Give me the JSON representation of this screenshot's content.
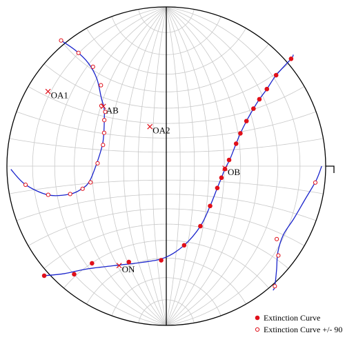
{
  "chart_data": {
    "type": "scatter",
    "projection": "stereographic-net",
    "grid": true,
    "legend_position": "bottom-right",
    "colors": {
      "net_lines": "#c8c8c8",
      "outline": "#000000",
      "axis": "#000000",
      "curve": "#1a24cc",
      "points": "#e0101a",
      "label_marks": "#e0101a"
    },
    "labels": [
      {
        "id": "oa1",
        "text": "OA1",
        "x": -0.742,
        "y": 0.469
      },
      {
        "id": "ab",
        "text": "AB",
        "x": -0.395,
        "y": 0.375
      },
      {
        "id": "oa2",
        "text": "OA2",
        "x": -0.103,
        "y": 0.248
      },
      {
        "id": "ob",
        "text": "OB",
        "x": 0.368,
        "y": -0.013
      },
      {
        "id": "on",
        "text": "ON",
        "x": -0.296,
        "y": -0.624
      }
    ],
    "legend": [
      {
        "id": "ext",
        "label": "Extinction Curve",
        "marker": "filled"
      },
      {
        "id": "ext90",
        "label": "Extinction Curve +/- 90",
        "marker": "open"
      }
    ],
    "series": [
      {
        "name": "Extinction Curve",
        "marker": "filled",
        "points": [
          [
            0.783,
            0.674
          ],
          [
            0.689,
            0.571
          ],
          [
            0.631,
            0.484
          ],
          [
            0.584,
            0.42
          ],
          [
            0.547,
            0.361
          ],
          [
            0.503,
            0.283
          ],
          [
            0.465,
            0.206
          ],
          [
            0.438,
            0.141
          ],
          [
            0.394,
            0.039
          ],
          [
            0.368,
            -0.018
          ],
          [
            0.346,
            -0.073
          ],
          [
            0.32,
            -0.137
          ],
          [
            0.275,
            -0.25
          ],
          [
            0.214,
            -0.377
          ],
          [
            0.112,
            -0.497
          ],
          [
            -0.032,
            -0.591
          ],
          [
            -0.235,
            -0.602
          ],
          [
            -0.466,
            -0.61
          ],
          [
            -0.578,
            -0.679
          ],
          [
            -0.766,
            -0.688
          ]
        ]
      },
      {
        "name": "Extinction Curve +/- 90",
        "marker": "open",
        "points": [
          [
            -0.66,
            0.789
          ],
          [
            -0.551,
            0.711
          ],
          [
            -0.46,
            0.624
          ],
          [
            -0.41,
            0.508
          ],
          [
            -0.407,
            0.379
          ],
          [
            -0.383,
            0.341
          ],
          [
            -0.389,
            0.289
          ],
          [
            -0.39,
            0.209
          ],
          [
            -0.397,
            0.133
          ],
          [
            -0.431,
            0.018
          ],
          [
            -0.475,
            -0.102
          ],
          [
            -0.525,
            -0.142
          ],
          [
            -0.603,
            -0.175
          ],
          [
            -0.741,
            -0.18
          ],
          [
            -0.883,
            -0.117
          ],
          [
            0.935,
            -0.103
          ],
          [
            0.693,
            -0.458
          ],
          [
            0.703,
            -0.561
          ],
          [
            0.681,
            -0.754
          ]
        ]
      }
    ],
    "curves": [
      [
        [
          -0.66,
          0.789
        ],
        [
          -0.57,
          0.727
        ],
        [
          -0.49,
          0.648
        ],
        [
          -0.436,
          0.55
        ],
        [
          -0.408,
          0.43
        ],
        [
          -0.39,
          0.362
        ],
        [
          -0.389,
          0.289
        ],
        [
          -0.392,
          0.209
        ],
        [
          -0.401,
          0.133
        ],
        [
          -0.436,
          0.018
        ],
        [
          -0.48,
          -0.092
        ],
        [
          -0.526,
          -0.14
        ],
        [
          -0.606,
          -0.176
        ],
        [
          -0.74,
          -0.181
        ],
        [
          -0.885,
          -0.115
        ],
        [
          -0.975,
          -0.02
        ]
      ],
      [
        [
          0.797,
          0.7
        ],
        [
          0.783,
          0.674
        ],
        [
          0.689,
          0.571
        ],
        [
          0.631,
          0.484
        ],
        [
          0.584,
          0.42
        ],
        [
          0.547,
          0.361
        ],
        [
          0.503,
          0.283
        ],
        [
          0.465,
          0.206
        ],
        [
          0.438,
          0.141
        ],
        [
          0.4,
          0.045
        ],
        [
          0.368,
          -0.018
        ],
        [
          0.346,
          -0.073
        ],
        [
          0.32,
          -0.137
        ],
        [
          0.275,
          -0.25
        ],
        [
          0.214,
          -0.377
        ],
        [
          0.112,
          -0.497
        ],
        [
          -0.01,
          -0.575
        ],
        [
          -0.15,
          -0.604
        ],
        [
          -0.33,
          -0.625
        ],
        [
          -0.5,
          -0.646
        ],
        [
          -0.64,
          -0.675
        ],
        [
          -0.766,
          -0.688
        ]
      ],
      [
        [
          0.975,
          0.0
        ],
        [
          0.94,
          -0.09
        ],
        [
          0.87,
          -0.21
        ],
        [
          0.8,
          -0.33
        ],
        [
          0.735,
          -0.43
        ],
        [
          0.7,
          -0.54
        ],
        [
          0.692,
          -0.65
        ],
        [
          0.681,
          -0.754
        ],
        [
          0.67,
          -0.78
        ]
      ]
    ]
  }
}
